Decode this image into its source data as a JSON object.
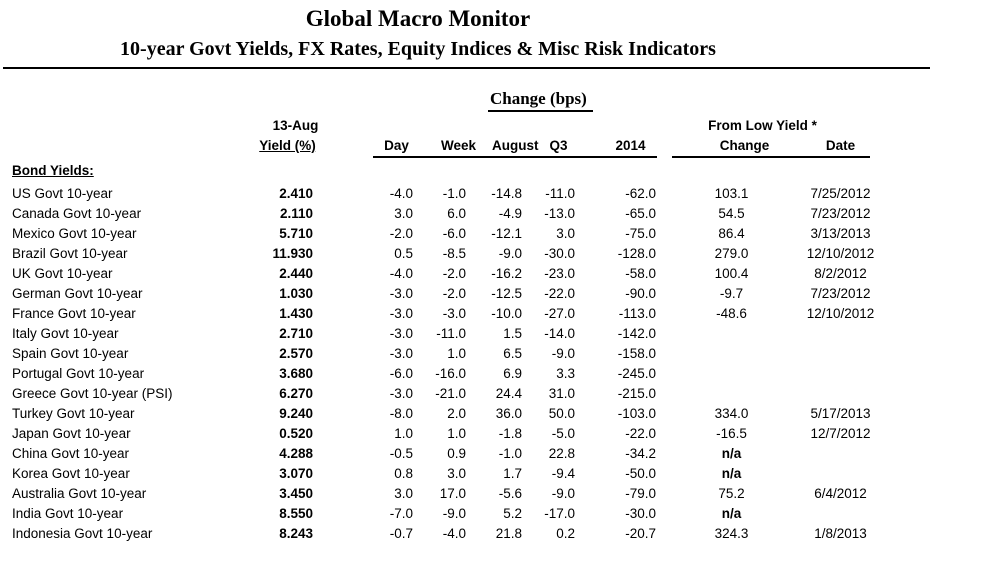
{
  "header": {
    "title": "Global Macro Monitor",
    "subtitle": "10-year Govt Yields, FX Rates, Equity Indices & Misc Risk Indicators"
  },
  "table": {
    "group_title": "Change (bps)",
    "col_date_label": "13-Aug",
    "col_yield_label": "Yield (%)",
    "change_cols": [
      "Day",
      "Week",
      "August",
      "Q3",
      "2014"
    ],
    "from_low_title": "From Low Yield *",
    "from_low_cols": [
      "Change",
      "Date"
    ],
    "section_label": "Bond Yields:",
    "rows": [
      {
        "name": "US Govt 10-year",
        "yield": "2.410",
        "day": "-4.0",
        "week": "-1.0",
        "august": "-14.8",
        "q3": "-11.0",
        "y2014": "-62.0",
        "low_change": "103.1",
        "low_date": "7/25/2012"
      },
      {
        "name": "Canada Govt 10-year",
        "yield": "2.110",
        "day": "3.0",
        "week": "6.0",
        "august": "-4.9",
        "q3": "-13.0",
        "y2014": "-65.0",
        "low_change": "54.5",
        "low_date": "7/23/2012"
      },
      {
        "name": "Mexico Govt 10-year",
        "yield": "5.710",
        "day": "-2.0",
        "week": "-6.0",
        "august": "-12.1",
        "q3": "3.0",
        "y2014": "-75.0",
        "low_change": "86.4",
        "low_date": "3/13/2013"
      },
      {
        "name": "Brazil Govt 10-year",
        "yield": "11.930",
        "day": "0.5",
        "week": "-8.5",
        "august": "-9.0",
        "q3": "-30.0",
        "y2014": "-128.0",
        "low_change": "279.0",
        "low_date": "12/10/2012"
      },
      {
        "name": "UK Govt 10-year",
        "yield": "2.440",
        "day": "-4.0",
        "week": "-2.0",
        "august": "-16.2",
        "q3": "-23.0",
        "y2014": "-58.0",
        "low_change": "100.4",
        "low_date": "8/2/2012"
      },
      {
        "name": "German Govt 10-year",
        "yield": "1.030",
        "day": "-3.0",
        "week": "-2.0",
        "august": "-12.5",
        "q3": "-22.0",
        "y2014": "-90.0",
        "low_change": "-9.7",
        "low_date": "7/23/2012"
      },
      {
        "name": "France Govt 10-year",
        "yield": "1.430",
        "day": "-3.0",
        "week": "-3.0",
        "august": "-10.0",
        "q3": "-27.0",
        "y2014": "-113.0",
        "low_change": "-48.6",
        "low_date": "12/10/2012"
      },
      {
        "name": "Italy Govt 10-year",
        "yield": "2.710",
        "day": "-3.0",
        "week": "-11.0",
        "august": "1.5",
        "q3": "-14.0",
        "y2014": "-142.0",
        "low_change": "",
        "low_date": ""
      },
      {
        "name": "Spain Govt 10-year",
        "yield": "2.570",
        "day": "-3.0",
        "week": "1.0",
        "august": "6.5",
        "q3": "-9.0",
        "y2014": "-158.0",
        "low_change": "",
        "low_date": ""
      },
      {
        "name": "Portugal Govt 10-year",
        "yield": "3.680",
        "day": "-6.0",
        "week": "-16.0",
        "august": "6.9",
        "q3": "3.3",
        "y2014": "-245.0",
        "low_change": "",
        "low_date": ""
      },
      {
        "name": "Greece Govt 10-year (PSI)",
        "yield": "6.270",
        "day": "-3.0",
        "week": "-21.0",
        "august": "24.4",
        "q3": "31.0",
        "y2014": "-215.0",
        "low_change": "",
        "low_date": ""
      },
      {
        "name": "Turkey Govt 10-year",
        "yield": "9.240",
        "day": "-8.0",
        "week": "2.0",
        "august": "36.0",
        "q3": "50.0",
        "y2014": "-103.0",
        "low_change": "334.0",
        "low_date": "5/17/2013"
      },
      {
        "name": "Japan Govt 10-year",
        "yield": "0.520",
        "day": "1.0",
        "week": "1.0",
        "august": "-1.8",
        "q3": "-5.0",
        "y2014": "-22.0",
        "low_change": "-16.5",
        "low_date": "12/7/2012"
      },
      {
        "name": "China Govt 10-year",
        "yield": "4.288",
        "day": "-0.5",
        "week": "0.9",
        "august": "-1.0",
        "q3": "22.8",
        "y2014": "-34.2",
        "low_change": "n/a",
        "low_date": ""
      },
      {
        "name": "Korea Govt 10-year",
        "yield": "3.070",
        "day": "0.8",
        "week": "3.0",
        "august": "1.7",
        "q3": "-9.4",
        "y2014": "-50.0",
        "low_change": "n/a",
        "low_date": ""
      },
      {
        "name": "Australia Govt 10-year",
        "yield": "3.450",
        "day": "3.0",
        "week": "17.0",
        "august": "-5.6",
        "q3": "-9.0",
        "y2014": "-79.0",
        "low_change": "75.2",
        "low_date": "6/4/2012"
      },
      {
        "name": "India Govt 10-year",
        "yield": "8.550",
        "day": "-7.0",
        "week": "-9.0",
        "august": "5.2",
        "q3": "-17.0",
        "y2014": "-30.0",
        "low_change": "n/a",
        "low_date": ""
      },
      {
        "name": "Indonesia Govt 10-year",
        "yield": "8.243",
        "day": "-0.7",
        "week": "-4.0",
        "august": "21.8",
        "q3": "0.2",
        "y2014": "-20.7",
        "low_change": "324.3",
        "low_date": "1/8/2013"
      }
    ]
  }
}
